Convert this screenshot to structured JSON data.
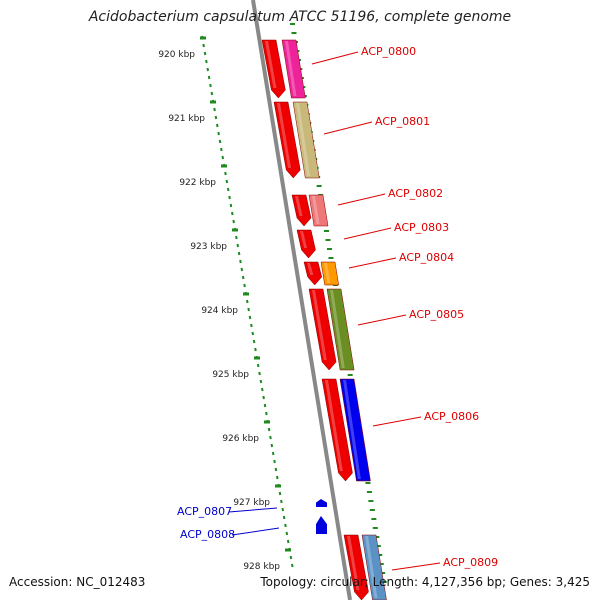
{
  "title": "Acidobacterium capsulatum ATCC 51196, complete genome",
  "footer": {
    "accession": "Accession: NC_012483",
    "summary": "Topology: circular; Length: 4,127,356 bp; Genes: 3,425"
  },
  "scale": {
    "unit": "kbp",
    "ticks": [
      "920 kbp",
      "921 kbp",
      "922 kbp",
      "923 kbp",
      "924 kbp",
      "925 kbp",
      "926 kbp",
      "927 kbp",
      "928 kbp"
    ]
  },
  "genes": [
    {
      "label": "ACP_0800",
      "strand": "forward",
      "rna_color": "#ee2299",
      "label_color": "#dd0000"
    },
    {
      "label": "ACP_0801",
      "strand": "forward",
      "rna_color": "#c8b97a",
      "label_color": "#dd0000"
    },
    {
      "label": "ACP_0802",
      "strand": "forward",
      "rna_color": "#ee7777",
      "label_color": "#dd0000"
    },
    {
      "label": "ACP_0803",
      "strand": "forward",
      "rna_color": null,
      "label_color": "#dd0000"
    },
    {
      "label": "ACP_0804",
      "strand": "forward",
      "rna_color": "#ff9900",
      "label_color": "#dd0000"
    },
    {
      "label": "ACP_0805",
      "strand": "forward",
      "rna_color": "#6b8e23",
      "label_color": "#dd0000"
    },
    {
      "label": "ACP_0806",
      "strand": "forward",
      "rna_color": "#0000ee",
      "label_color": "#dd0000"
    },
    {
      "label": "ACP_0807",
      "strand": "reverse",
      "rna_color": null,
      "label_color": "#0000cc"
    },
    {
      "label": "ACP_0808",
      "strand": "reverse",
      "rna_color": null,
      "label_color": "#0000cc"
    },
    {
      "label": "ACP_0809",
      "strand": "forward",
      "rna_color": "#5b92c6",
      "label_color": "#dd0000"
    }
  ]
}
